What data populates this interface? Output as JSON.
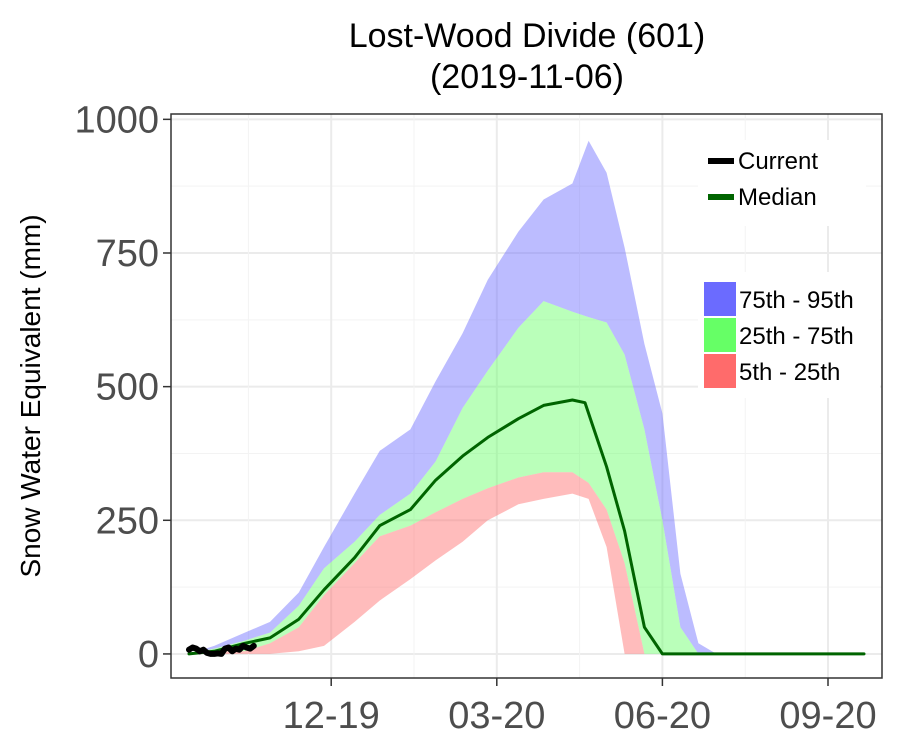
{
  "chart_data": {
    "type": "area",
    "title": [
      "Lost-Wood Divide (601)",
      "(2019-11-06)"
    ],
    "xlabel": "",
    "ylabel": "Snow Water Equivalent (mm)",
    "ylim": [
      -45,
      1010
    ],
    "yticks": [
      0,
      250,
      500,
      750,
      1000
    ],
    "xlim": [
      "2019-09-21",
      "2020-10-20"
    ],
    "xticks": [
      {
        "date": "2019-12-19",
        "label": "12-19"
      },
      {
        "date": "2020-03-20",
        "label": "03-20"
      },
      {
        "date": "2020-06-20",
        "label": "06-20"
      },
      {
        "date": "2020-09-20",
        "label": "09-20"
      }
    ],
    "grid": true,
    "legend_position": "right",
    "colors": {
      "p75_95": "#6b6bff",
      "p25_75": "#66ff66",
      "p5_25": "#ff6b6b",
      "median": "#006400",
      "current": "#000000"
    },
    "legend_lines": [
      {
        "name": "Current",
        "color": "#000000"
      },
      {
        "name": "Median",
        "color": "#006400"
      }
    ],
    "legend_bands": [
      {
        "name": "75th - 95th",
        "color": "#6b6bff"
      },
      {
        "name": "25th - 75th",
        "color": "#66ff66"
      },
      {
        "name": "5th - 25th",
        "color": "#ff6b6b"
      }
    ],
    "bands": {
      "dates": [
        "2019-10-01",
        "2019-10-15",
        "2019-11-01",
        "2019-11-15",
        "2019-12-01",
        "2019-12-15",
        "2020-01-01",
        "2020-01-15",
        "2020-02-01",
        "2020-02-15",
        "2020-03-01",
        "2020-03-15",
        "2020-04-01",
        "2020-04-15",
        "2020-05-01",
        "2020-05-10",
        "2020-05-20",
        "2020-05-30",
        "2020-06-10",
        "2020-06-20",
        "2020-06-30",
        "2020-07-10",
        "2020-07-20",
        "2020-08-01",
        "2020-10-10"
      ],
      "p5": [
        0,
        0,
        0,
        0,
        5,
        15,
        60,
        100,
        140,
        175,
        210,
        250,
        280,
        290,
        300,
        290,
        200,
        0,
        0,
        0,
        0,
        0,
        0,
        0,
        0
      ],
      "p25": [
        0,
        5,
        5,
        20,
        50,
        110,
        170,
        220,
        240,
        265,
        290,
        310,
        330,
        340,
        340,
        320,
        270,
        170,
        0,
        0,
        0,
        0,
        0,
        0,
        0
      ],
      "p75": [
        0,
        10,
        25,
        40,
        90,
        160,
        210,
        260,
        300,
        360,
        460,
        530,
        610,
        660,
        640,
        630,
        620,
        560,
        420,
        250,
        50,
        0,
        0,
        0,
        0
      ],
      "p95": [
        0,
        15,
        40,
        60,
        115,
        200,
        300,
        380,
        420,
        510,
        600,
        700,
        790,
        850,
        880,
        960,
        900,
        760,
        580,
        450,
        150,
        20,
        0,
        0,
        0
      ]
    },
    "median": {
      "dates": [
        "2019-10-01",
        "2019-10-15",
        "2019-11-01",
        "2019-11-15",
        "2019-12-01",
        "2019-12-15",
        "2020-01-01",
        "2020-01-15",
        "2020-02-01",
        "2020-02-15",
        "2020-03-01",
        "2020-03-15",
        "2020-04-01",
        "2020-04-15",
        "2020-05-01",
        "2020-05-08",
        "2020-05-12",
        "2020-05-20",
        "2020-05-30",
        "2020-06-10",
        "2020-06-20",
        "2020-06-21",
        "2020-10-10"
      ],
      "values": [
        0,
        5,
        20,
        30,
        65,
        120,
        180,
        240,
        270,
        325,
        370,
        405,
        440,
        465,
        475,
        470,
        430,
        350,
        230,
        50,
        0,
        0,
        0
      ]
    },
    "current": {
      "dates": [
        "2019-10-01",
        "2019-10-03",
        "2019-10-05",
        "2019-10-07",
        "2019-10-09",
        "2019-10-11",
        "2019-10-13",
        "2019-10-15",
        "2019-10-17",
        "2019-10-19",
        "2019-10-21",
        "2019-10-23",
        "2019-10-25",
        "2019-10-27",
        "2019-10-29",
        "2019-10-31",
        "2019-11-02",
        "2019-11-04",
        "2019-11-06"
      ],
      "values": [
        8,
        12,
        10,
        5,
        8,
        2,
        0,
        0,
        1,
        0,
        10,
        12,
        5,
        10,
        8,
        15,
        12,
        10,
        15
      ]
    }
  }
}
